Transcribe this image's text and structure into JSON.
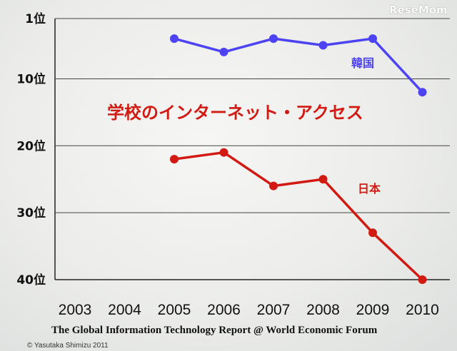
{
  "watermark": "ReseMom",
  "credit": "© Yasutaka Shimizu 2011",
  "colors": {
    "korea": "#4d43f2",
    "japan": "#d11a12"
  },
  "chart_data": {
    "type": "line",
    "title": "学校のインターネット・アクセス",
    "caption": "The Global Information Technology Report @ World Economic Forum",
    "categories": [
      "2003",
      "2004",
      "2005",
      "2006",
      "2007",
      "2008",
      "2009",
      "2010"
    ],
    "y_ticks": [
      {
        "value": 1,
        "label": "1位"
      },
      {
        "value": 10,
        "label": "10位"
      },
      {
        "value": 20,
        "label": "20位"
      },
      {
        "value": 30,
        "label": "30位"
      },
      {
        "value": 40,
        "label": "40位"
      }
    ],
    "ylim": [
      1,
      40
    ],
    "y_inverted": true,
    "grid": "horizontal",
    "series": [
      {
        "name": "韓国",
        "color": "#4d43f2",
        "values": [
          null,
          null,
          4,
          6,
          4,
          5,
          4,
          12
        ]
      },
      {
        "name": "日本",
        "color": "#d11a12",
        "values": [
          null,
          null,
          22,
          21,
          26,
          25,
          33,
          40
        ]
      }
    ]
  }
}
